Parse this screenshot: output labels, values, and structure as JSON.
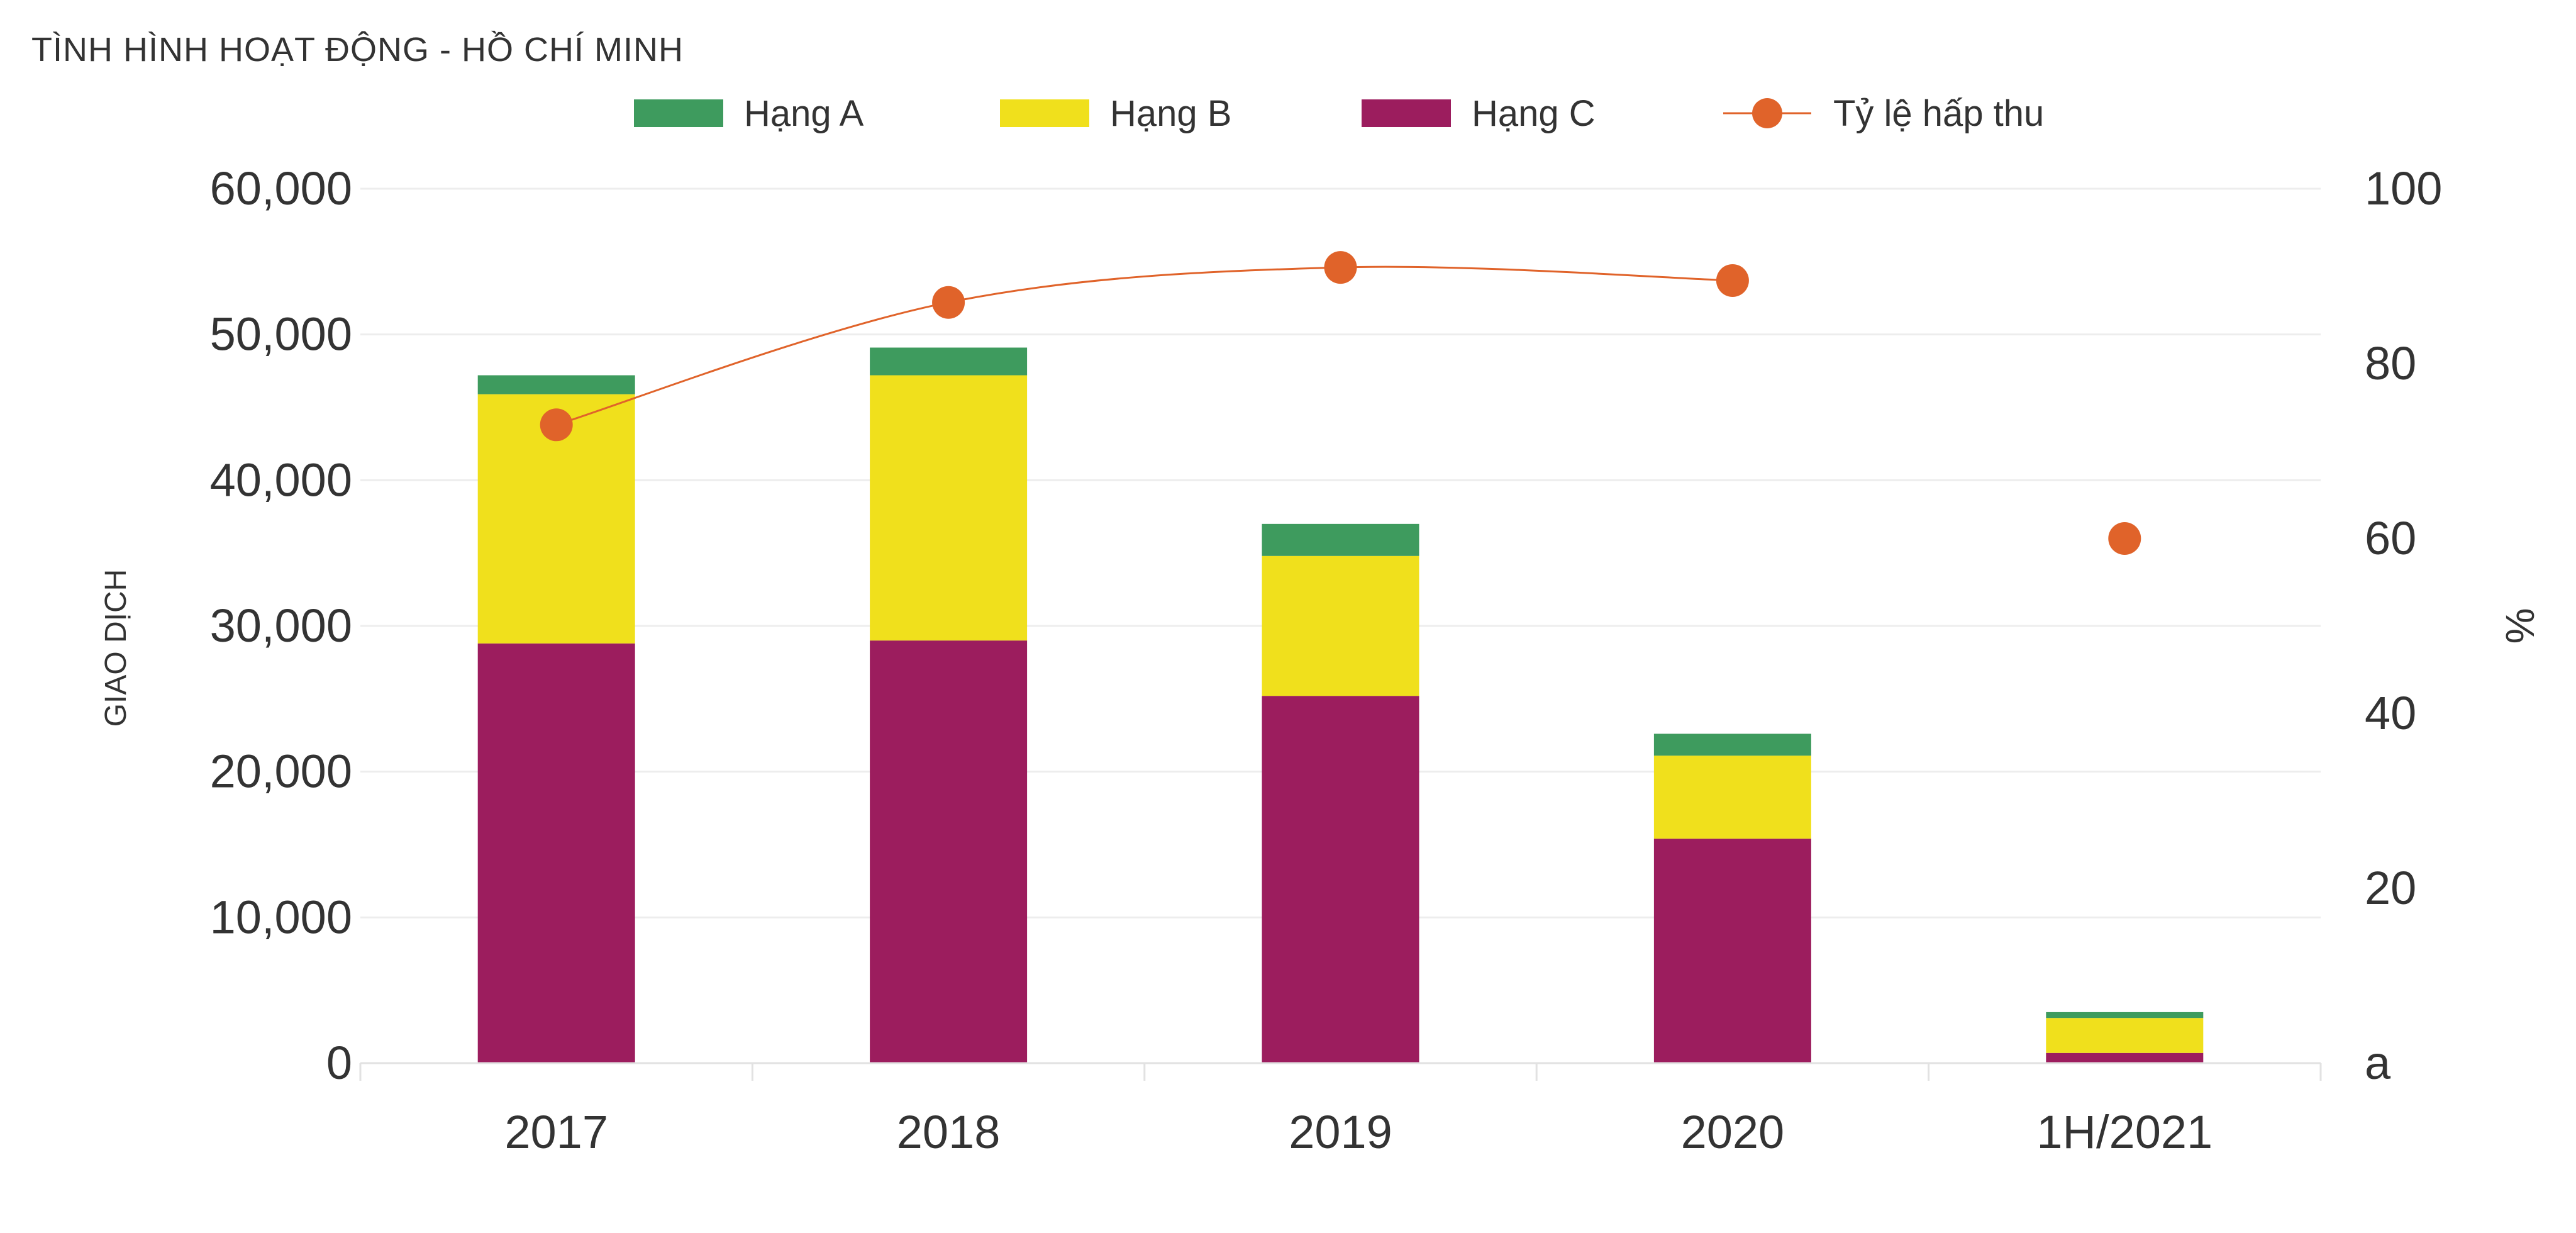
{
  "chart_data": {
    "type": "bar",
    "title": "TÌNH HÌNH HOẠT ĐỘNG - HỒ CHÍ MINH",
    "categories": [
      "2017",
      "2018",
      "2019",
      "2020",
      "1H/2021"
    ],
    "series": [
      {
        "name": "Hạng C",
        "type": "bar",
        "stack": "main",
        "color": "#9C1D5E",
        "values": [
          28800,
          29000,
          25200,
          15400,
          700
        ]
      },
      {
        "name": "Hạng B",
        "type": "bar",
        "stack": "main",
        "color": "#F0E01C",
        "values": [
          17100,
          18200,
          9600,
          5700,
          2400
        ]
      },
      {
        "name": "Hạng A",
        "type": "bar",
        "stack": "main",
        "color": "#3E9B5E",
        "values": [
          1300,
          1900,
          2200,
          1500,
          400
        ]
      },
      {
        "name": "Tỷ lệ hấp thu",
        "type": "line",
        "axis": "right",
        "color": "#E0632A",
        "values": [
          73,
          87,
          91,
          89.5,
          60
        ]
      }
    ],
    "legend_order": [
      "Hạng A",
      "Hạng B",
      "Hạng C",
      "Tỷ lệ hấp thu"
    ],
    "legend_position": "top",
    "ylabel": "GIAO DỊCH",
    "ylim": [
      0,
      60000
    ],
    "yticks": [
      "0",
      "10,000",
      "20,000",
      "30,000",
      "40,000",
      "50,000",
      "60,000"
    ],
    "y2label": "%",
    "y2lim": [
      0,
      100
    ],
    "y2ticks": [
      "a",
      "20",
      "40",
      "60",
      "80",
      "100"
    ],
    "grid": true
  }
}
